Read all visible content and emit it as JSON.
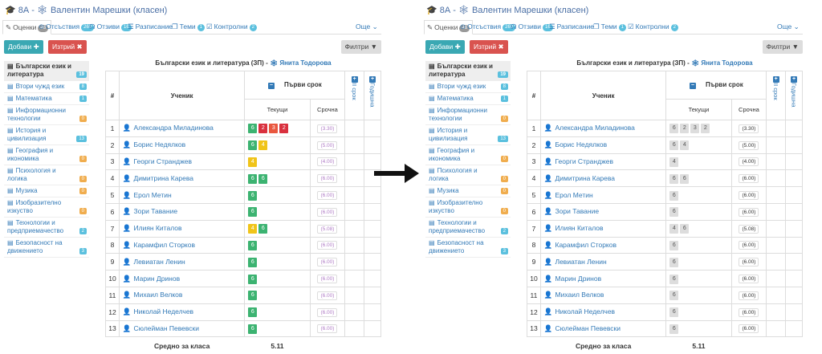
{
  "header": {
    "title": "8А - 🕸 Валентин Марешки (класен)"
  },
  "tabs": [
    {
      "label": "Оценки",
      "badge": "46"
    },
    {
      "label": "Отсъствия",
      "badge": "269"
    },
    {
      "label": "Отзиви",
      "badge": "16"
    },
    {
      "label": "Разписание",
      "badge": ""
    },
    {
      "label": "Теми",
      "badge": "1"
    },
    {
      "label": "Контролни",
      "badge": "2"
    },
    {
      "label": "Още",
      "badge": ""
    }
  ],
  "toolbar": {
    "add_label": "Добави ✚",
    "delete_label": "Изтрий ✖",
    "filter_label": "Филтри ▼"
  },
  "subjects": [
    {
      "label": "Български език и литература",
      "count": "19",
      "color": "blue"
    },
    {
      "label": "Втори чужд език",
      "count": "8",
      "color": "blue"
    },
    {
      "label": "Математика",
      "count": "1",
      "color": "blue"
    },
    {
      "label": "Информационни технологии",
      "count": "0",
      "color": "yellow"
    },
    {
      "label": "История и цивилизация",
      "count": "13",
      "color": "blue"
    },
    {
      "label": "География и икономика",
      "count": "0",
      "color": "yellow"
    },
    {
      "label": "Психология и логика",
      "count": "0",
      "color": "yellow"
    },
    {
      "label": "Музика",
      "count": "0",
      "color": "yellow"
    },
    {
      "label": "Изобразително изкуство",
      "count": "0",
      "color": "yellow"
    },
    {
      "label": "Технологии и предприемачество",
      "count": "2",
      "color": "blue"
    },
    {
      "label": "Безопасност на движението",
      "count": "3",
      "color": "blue"
    }
  ],
  "teacher_line": {
    "subject": "Български език и литература (ЗП) - ",
    "teacher": "🕸 Янита Тодорова"
  },
  "table": {
    "col_num": "#",
    "col_student": "Ученик",
    "col_term1": "Първи срок",
    "col_current": "Текущи",
    "col_term": "Срочна",
    "col_term2": "II срок",
    "col_year": "Годишна",
    "avg_label": "Средно за класа",
    "avg_value": "5.11",
    "rows": [
      {
        "n": "1",
        "name": "Александра Миладинова",
        "grades": [
          "6",
          "2",
          "3",
          "2"
        ],
        "final": "(3.30)"
      },
      {
        "n": "2",
        "name": "Борис Недялков",
        "grades": [
          "6",
          "4"
        ],
        "final": "(5.00)"
      },
      {
        "n": "3",
        "name": "Георги Странджев",
        "grades": [
          "4"
        ],
        "final": "(4.00)"
      },
      {
        "n": "4",
        "name": "Димитрина Карева",
        "grades": [
          "6",
          "6"
        ],
        "final": "(6.00)"
      },
      {
        "n": "5",
        "name": "Ерол Метин",
        "grades": [
          "6"
        ],
        "final": "(6.00)"
      },
      {
        "n": "6",
        "name": "Зори Тавание",
        "grades": [
          "6"
        ],
        "final": "(6.00)"
      },
      {
        "n": "7",
        "name": "Илиян Киталов",
        "grades": [
          "4",
          "6"
        ],
        "final": "(5.08)"
      },
      {
        "n": "8",
        "name": "Карамфил Сторков",
        "grades": [
          "6"
        ],
        "final": "(6.00)"
      },
      {
        "n": "9",
        "name": "Левиатан Ленин",
        "grades": [
          "6"
        ],
        "final": "(6.00)"
      },
      {
        "n": "10",
        "name": "Марин Дринов",
        "grades": [
          "6"
        ],
        "final": "(6.00)"
      },
      {
        "n": "11",
        "name": "Михаил Велков",
        "grades": [
          "6"
        ],
        "final": "(6.00)"
      },
      {
        "n": "12",
        "name": "Николай Неделчев",
        "grades": [
          "6"
        ],
        "final": "(6.00)"
      },
      {
        "n": "13",
        "name": "Сюлейман Певевски",
        "grades": [
          "6"
        ],
        "final": "(6.00)"
      }
    ]
  },
  "colors": {
    "link": "#337ab7",
    "grade6": "#3cb371",
    "grade4": "#f0c419",
    "grade3": "#e9573f",
    "grade2": "#d9303e"
  }
}
